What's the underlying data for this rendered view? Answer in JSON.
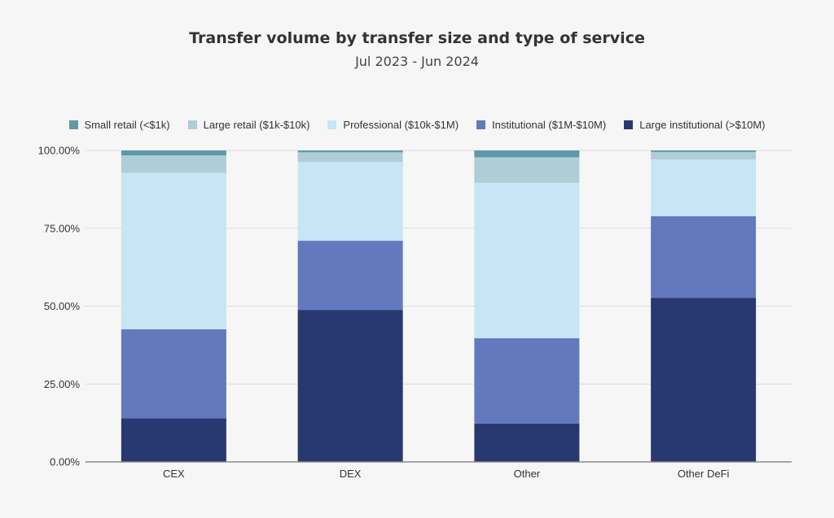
{
  "chart_data": {
    "type": "bar",
    "stacked": true,
    "title": "Transfer volume by transfer size and type of service",
    "subtitle": "Jul 2023 - Jun 2024",
    "xlabel": "",
    "ylabel": "",
    "categories": [
      "CEX",
      "DEX",
      "Other",
      "Other DeFi"
    ],
    "ylim": [
      0,
      100
    ],
    "yticks": [
      "0.00%",
      "25.00%",
      "50.00%",
      "75.00%",
      "100.00%"
    ],
    "grid": true,
    "legend_position": "top",
    "series": [
      {
        "name": "Small retail (<$1k)",
        "color": "#5e9aa8",
        "values": [
          1.6,
          0.6,
          2.2,
          0.5
        ]
      },
      {
        "name": "Large retail ($1k-$10k)",
        "color": "#afcdd6",
        "values": [
          5.6,
          3.1,
          8.2,
          2.4
        ]
      },
      {
        "name": "Professional ($10k-$1M)",
        "color": "#c6e5f5",
        "values": [
          50.2,
          25.3,
          49.9,
          18.2
        ]
      },
      {
        "name": "Institutional ($1M-$10M)",
        "color": "#6379bd",
        "values": [
          28.6,
          22.2,
          27.4,
          26.2
        ]
      },
      {
        "name": "Large institutional (>$10M)",
        "color": "#283870",
        "values": [
          14.0,
          48.8,
          12.3,
          52.7
        ]
      }
    ]
  }
}
